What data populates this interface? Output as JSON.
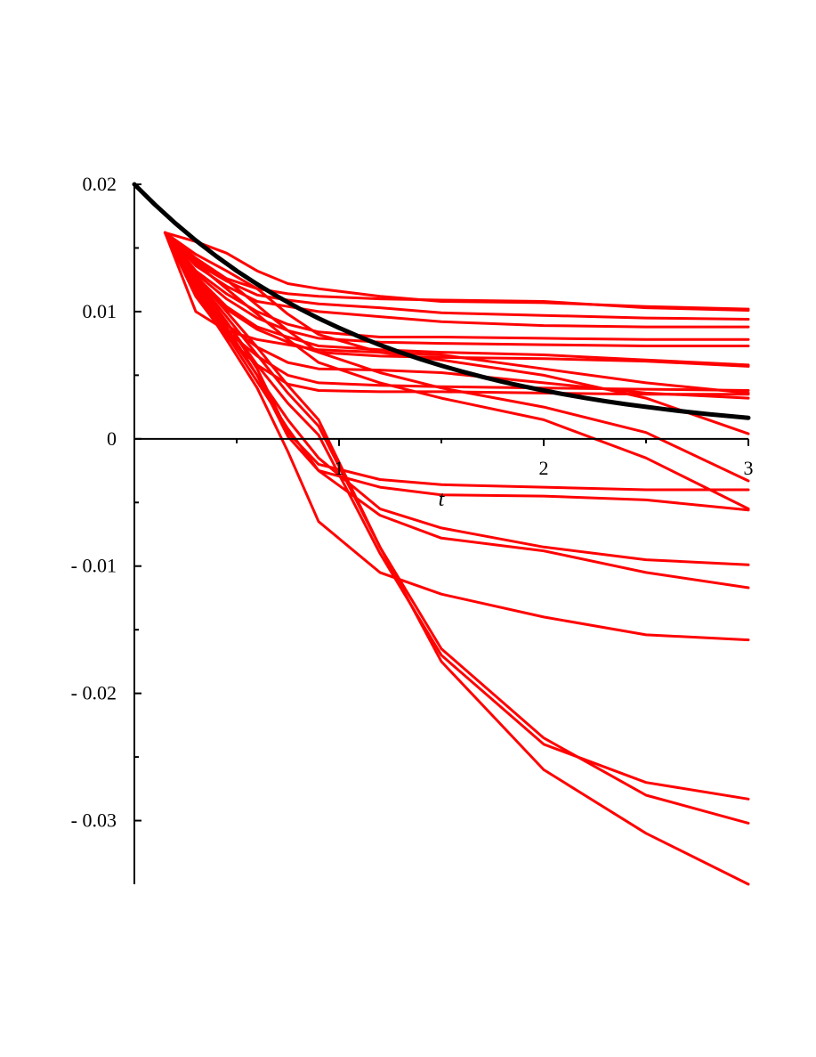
{
  "chart_data": {
    "type": "line",
    "title": "",
    "xlabel": "t",
    "ylabel": "",
    "xlim": [
      0,
      3
    ],
    "ylim": [
      -0.035,
      0.02
    ],
    "grid": false,
    "legend": "none",
    "x_ticks": [
      {
        "value": 1,
        "label": "1"
      },
      {
        "value": 2,
        "label": "2"
      },
      {
        "value": 3,
        "label": "3"
      }
    ],
    "x_minor_ticks": [
      0.5,
      1.5,
      2.5
    ],
    "y_ticks": [
      {
        "value": 0.02,
        "label": "0.02"
      },
      {
        "value": 0.01,
        "label": "0.01"
      },
      {
        "value": 0,
        "label": "0"
      },
      {
        "value": -0.01,
        "label": "- 0.01"
      },
      {
        "value": -0.02,
        "label": "- 0.02"
      },
      {
        "value": -0.03,
        "label": "- 0.03"
      }
    ],
    "y_minor_ticks": [
      0.015,
      0.005,
      -0.005,
      -0.015,
      -0.025
    ],
    "colors": {
      "reference": "#000000",
      "paths": "#ff0000"
    },
    "reference_curve": {
      "formula": "0.02*exp(-0.83*t)",
      "x": [
        0,
        0.1,
        0.2,
        0.3,
        0.4,
        0.5,
        0.6,
        0.7,
        0.8,
        0.9,
        1.0,
        1.1,
        1.2,
        1.3,
        1.4,
        1.5,
        1.6,
        1.7,
        1.8,
        1.9,
        2.0,
        2.1,
        2.2,
        2.3,
        2.4,
        2.5,
        2.6,
        2.7,
        2.8,
        2.9,
        3.0
      ],
      "y": [
        0.02,
        0.01841,
        0.01694,
        0.01559,
        0.01435,
        0.0132,
        0.01215,
        0.01118,
        0.01029,
        0.00947,
        0.00872,
        0.00802,
        0.00738,
        0.00679,
        0.00625,
        0.00575,
        0.00529,
        0.00487,
        0.00448,
        0.00413,
        0.0038,
        0.0035,
        0.00322,
        0.00296,
        0.00272,
        0.00251,
        0.00231,
        0.00212,
        0.00195,
        0.0018,
        0.00165
      ]
    },
    "series": [
      {
        "x": [
          0.15,
          0.3,
          0.45,
          0.6,
          0.75,
          0.9,
          1.2,
          1.5,
          2.0,
          2.5,
          3.0
        ],
        "y": [
          0.0162,
          0.0155,
          0.0146,
          0.0132,
          0.0122,
          0.0118,
          0.0112,
          0.0108,
          0.0107,
          0.0104,
          0.0102
        ]
      },
      {
        "x": [
          0.15,
          0.3,
          0.45,
          0.6,
          0.75,
          0.9,
          1.2,
          1.5,
          2.0,
          2.5,
          3.0
        ],
        "y": [
          0.0162,
          0.0142,
          0.0126,
          0.0118,
          0.0114,
          0.0112,
          0.011,
          0.0109,
          0.0108,
          0.0103,
          0.0101
        ]
      },
      {
        "x": [
          0.15,
          0.3,
          0.45,
          0.6,
          0.75,
          0.9,
          1.2,
          1.5,
          2.0,
          2.5,
          3.0
        ],
        "y": [
          0.0162,
          0.0138,
          0.0124,
          0.0113,
          0.0109,
          0.0106,
          0.0103,
          0.0099,
          0.0097,
          0.0095,
          0.0094
        ]
      },
      {
        "x": [
          0.15,
          0.3,
          0.45,
          0.6,
          0.75,
          0.9,
          1.2,
          1.5,
          2.0,
          2.5,
          3.0
        ],
        "y": [
          0.0162,
          0.0136,
          0.012,
          0.0108,
          0.0104,
          0.01,
          0.0096,
          0.0092,
          0.0089,
          0.0088,
          0.0088
        ]
      },
      {
        "x": [
          0.15,
          0.3,
          0.45,
          0.6,
          0.75,
          0.9,
          1.2,
          1.5,
          2.0,
          2.5,
          3.0
        ],
        "y": [
          0.0162,
          0.0132,
          0.0114,
          0.01,
          0.009,
          0.0084,
          0.008,
          0.008,
          0.0079,
          0.0078,
          0.0078
        ]
      },
      {
        "x": [
          0.15,
          0.3,
          0.45,
          0.6,
          0.75,
          0.9,
          1.2,
          1.5,
          2.0,
          2.5,
          3.0
        ],
        "y": [
          0.0162,
          0.013,
          0.011,
          0.0095,
          0.0085,
          0.0079,
          0.0076,
          0.0075,
          0.0074,
          0.0073,
          0.0073
        ]
      },
      {
        "x": [
          0.15,
          0.3,
          0.45,
          0.6,
          0.75,
          0.9,
          1.2,
          1.5,
          2.0,
          2.5,
          3.0
        ],
        "y": [
          0.0162,
          0.0128,
          0.0104,
          0.0088,
          0.008,
          0.0073,
          0.007,
          0.0068,
          0.0066,
          0.0062,
          0.0058
        ]
      },
      {
        "x": [
          0.15,
          0.3,
          0.45,
          0.6,
          0.75,
          0.9,
          1.2,
          1.5,
          2.0,
          2.5,
          3.0
        ],
        "y": [
          0.0162,
          0.0126,
          0.0102,
          0.0086,
          0.0076,
          0.0068,
          0.0065,
          0.0064,
          0.0063,
          0.0061,
          0.0057
        ]
      },
      {
        "x": [
          0.15,
          0.3,
          0.45,
          0.6,
          0.75,
          0.9,
          1.2,
          1.5,
          2.0,
          2.5,
          3.0
        ],
        "y": [
          0.0162,
          0.01,
          0.0085,
          0.0078,
          0.0074,
          0.007,
          0.0068,
          0.0066,
          0.0055,
          0.0044,
          0.0036
        ]
      },
      {
        "x": [
          0.15,
          0.3,
          0.45,
          0.6,
          0.75,
          0.9,
          1.2,
          1.5,
          2.0,
          2.5,
          3.0
        ],
        "y": [
          0.0162,
          0.0118,
          0.009,
          0.0072,
          0.006,
          0.0055,
          0.0054,
          0.0052,
          0.0044,
          0.0036,
          0.0032
        ]
      },
      {
        "x": [
          0.15,
          0.3,
          0.45,
          0.6,
          0.75,
          0.9,
          1.2,
          1.5,
          2.0,
          2.5,
          3.0
        ],
        "y": [
          0.0162,
          0.0115,
          0.0085,
          0.0065,
          0.005,
          0.0044,
          0.0042,
          0.0041,
          0.004,
          0.0039,
          0.0038
        ]
      },
      {
        "x": [
          0.15,
          0.3,
          0.45,
          0.6,
          0.75,
          0.9,
          1.2,
          1.5,
          2.0,
          2.5,
          3.0
        ],
        "y": [
          0.0162,
          0.0112,
          0.008,
          0.0058,
          0.0043,
          0.0038,
          0.0037,
          0.0037,
          0.0036,
          0.0035,
          0.0035
        ]
      },
      {
        "x": [
          0.15,
          0.3,
          0.45,
          0.6,
          0.75,
          0.9,
          1.2,
          1.5,
          2.0,
          2.5,
          3.0
        ],
        "y": [
          0.0162,
          0.0145,
          0.0132,
          0.0118,
          0.0098,
          0.0082,
          0.0068,
          0.0062,
          0.005,
          0.0032,
          0.0004
        ]
      },
      {
        "x": [
          0.15,
          0.3,
          0.45,
          0.6,
          0.75,
          0.9,
          1.2,
          1.5,
          2.0,
          2.5,
          3.0
        ],
        "y": [
          0.0162,
          0.014,
          0.0125,
          0.0105,
          0.0085,
          0.0068,
          0.0052,
          0.004,
          0.0025,
          0.0005,
          -0.0033
        ]
      },
      {
        "x": [
          0.15,
          0.3,
          0.45,
          0.6,
          0.75,
          0.9,
          1.2,
          1.5,
          2.0,
          2.5,
          3.0
        ],
        "y": [
          0.0162,
          0.0138,
          0.0118,
          0.0098,
          0.0078,
          0.006,
          0.0044,
          0.0032,
          0.0015,
          -0.0015,
          -0.0055
        ]
      },
      {
        "x": [
          0.15,
          0.3,
          0.45,
          0.6,
          0.75,
          0.9,
          1.2,
          1.5,
          2.0,
          2.5,
          3.0
        ],
        "y": [
          0.0162,
          0.0125,
          0.0092,
          0.0055,
          0.0005,
          -0.002,
          -0.0032,
          -0.0036,
          -0.0038,
          -0.004,
          -0.004
        ]
      },
      {
        "x": [
          0.15,
          0.3,
          0.45,
          0.6,
          0.75,
          0.9,
          1.2,
          1.5,
          2.0,
          2.5,
          3.0
        ],
        "y": [
          0.0162,
          0.0122,
          0.0088,
          0.005,
          0.0002,
          -0.0025,
          -0.0038,
          -0.0044,
          -0.0045,
          -0.0048,
          -0.0056
        ]
      },
      {
        "x": [
          0.15,
          0.3,
          0.45,
          0.6,
          0.75,
          0.9,
          1.2,
          1.5,
          2.0,
          2.5,
          3.0
        ],
        "y": [
          0.0162,
          0.012,
          0.0085,
          0.005,
          0.0015,
          -0.0015,
          -0.0055,
          -0.007,
          -0.0085,
          -0.0095,
          -0.0099
        ]
      },
      {
        "x": [
          0.15,
          0.3,
          0.45,
          0.6,
          0.75,
          0.9,
          1.2,
          1.5,
          2.0,
          2.5,
          3.0
        ],
        "y": [
          0.0162,
          0.0118,
          0.0082,
          0.0045,
          0.0008,
          -0.0025,
          -0.006,
          -0.0078,
          -0.0088,
          -0.0105,
          -0.0117
        ]
      },
      {
        "x": [
          0.15,
          0.3,
          0.45,
          0.6,
          0.75,
          0.9,
          1.2,
          1.5,
          2.0,
          2.5,
          3.0
        ],
        "y": [
          0.0162,
          0.0115,
          0.0078,
          0.004,
          -0.001,
          -0.0065,
          -0.0105,
          -0.0122,
          -0.014,
          -0.0154,
          -0.0158
        ]
      },
      {
        "x": [
          0.15,
          0.3,
          0.45,
          0.6,
          0.75,
          0.9,
          1.2,
          1.5,
          2.0,
          2.5,
          3.0
        ],
        "y": [
          0.0162,
          0.0124,
          0.0092,
          0.0058,
          0.0028,
          0.0003,
          -0.009,
          -0.017,
          -0.024,
          -0.027,
          -0.0283
        ]
      },
      {
        "x": [
          0.15,
          0.3,
          0.45,
          0.6,
          0.75,
          0.9,
          1.2,
          1.5,
          2.0,
          2.5,
          3.0
        ],
        "y": [
          0.0162,
          0.0126,
          0.0096,
          0.0066,
          0.0036,
          0.001,
          -0.0085,
          -0.0165,
          -0.0235,
          -0.028,
          -0.0302
        ]
      },
      {
        "x": [
          0.15,
          0.3,
          0.45,
          0.6,
          0.75,
          0.9,
          1.2,
          1.5,
          2.0,
          2.5,
          3.0
        ],
        "y": [
          0.0162,
          0.0128,
          0.01,
          0.0072,
          0.0042,
          0.0015,
          -0.0085,
          -0.0175,
          -0.026,
          -0.031,
          -0.035
        ]
      }
    ]
  }
}
